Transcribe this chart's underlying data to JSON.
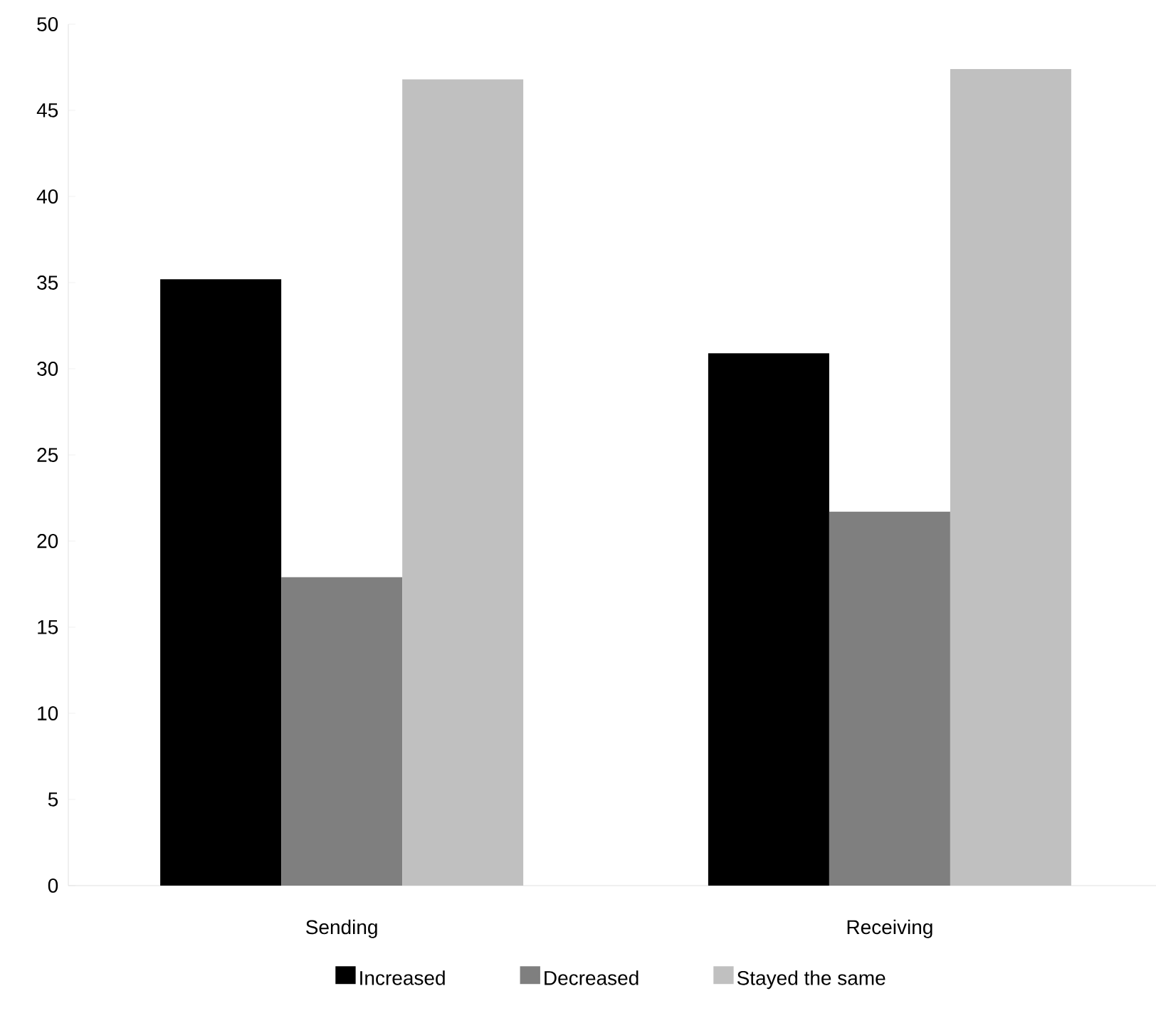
{
  "chart_data": {
    "type": "bar",
    "categories": [
      "Sending",
      "Receiving"
    ],
    "series": [
      {
        "name": "Increased",
        "color": "#000000",
        "values": [
          35.2,
          30.9
        ]
      },
      {
        "name": "Decreased",
        "color": "#7f7f7f",
        "values": [
          17.9,
          21.7
        ]
      },
      {
        "name": "Stayed the same",
        "color": "#c0c0c0",
        "values": [
          46.8,
          47.4
        ]
      }
    ],
    "ylim": [
      0,
      50
    ],
    "yticks": [
      0,
      5,
      10,
      15,
      20,
      25,
      30,
      35,
      40,
      45,
      50
    ],
    "legend": "bottom",
    "grid": false
  }
}
